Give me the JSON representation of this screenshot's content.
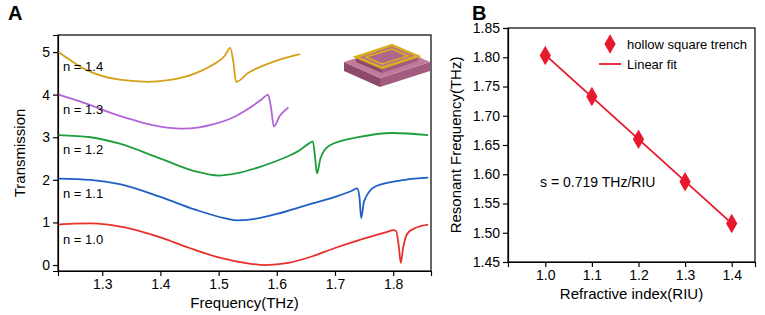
{
  "chart_data": [
    {
      "type": "line",
      "title": "A",
      "x_label": "Frequency(THz)",
      "y_label": "Transmission",
      "xlim": [
        1.224,
        1.865
      ],
      "ylim": [
        -0.14,
        5.4
      ],
      "xticks": [
        1.3,
        1.4,
        1.5,
        1.6,
        1.7,
        1.8
      ],
      "yticks": [
        0,
        1,
        2,
        3,
        4,
        5
      ],
      "series": [
        {
          "name": "n = 1.0",
          "color": "#e8312a",
          "x": [
            1.225,
            1.25,
            1.28,
            1.31,
            1.35,
            1.4,
            1.45,
            1.5,
            1.55,
            1.58,
            1.62,
            1.66,
            1.7,
            1.74,
            1.77,
            1.79,
            1.8,
            1.805,
            1.81,
            1.813,
            1.817,
            1.825,
            1.84,
            1.86
          ],
          "values": [
            0.95,
            0.97,
            0.98,
            0.95,
            0.85,
            0.65,
            0.4,
            0.18,
            0.04,
            0.0,
            0.05,
            0.2,
            0.4,
            0.58,
            0.7,
            0.78,
            0.82,
            0.8,
            0.4,
            0.05,
            0.4,
            0.75,
            0.88,
            0.95
          ]
        },
        {
          "name": "n = 1.1",
          "color": "#1f5fc4",
          "x": [
            1.225,
            1.28,
            1.33,
            1.4,
            1.46,
            1.51,
            1.53,
            1.56,
            1.6,
            1.65,
            1.7,
            1.73,
            1.738,
            1.742,
            1.745,
            1.75,
            1.77,
            1.82,
            1.86
          ],
          "values": [
            2.03,
            2.0,
            1.9,
            1.6,
            1.3,
            1.1,
            1.05,
            1.08,
            1.2,
            1.4,
            1.6,
            1.75,
            1.8,
            1.6,
            1.1,
            1.5,
            1.85,
            2.0,
            2.05
          ]
        },
        {
          "name": "n = 1.2",
          "color": "#1e9e3c",
          "x": [
            1.225,
            1.28,
            1.33,
            1.4,
            1.46,
            1.5,
            1.53,
            1.57,
            1.61,
            1.64,
            1.655,
            1.662,
            1.666,
            1.669,
            1.675,
            1.69,
            1.74,
            1.8,
            1.86
          ],
          "values": [
            3.05,
            3.0,
            2.85,
            2.5,
            2.2,
            2.1,
            2.15,
            2.3,
            2.5,
            2.7,
            2.85,
            2.9,
            2.5,
            2.15,
            2.5,
            2.8,
            3.0,
            3.1,
            3.05
          ]
        },
        {
          "name": "n = 1.3",
          "color": "#b264d6",
          "x": [
            1.225,
            1.27,
            1.33,
            1.4,
            1.44,
            1.49,
            1.53,
            1.56,
            1.575,
            1.585,
            1.59,
            1.595,
            1.605,
            1.62
          ],
          "values": [
            4.0,
            3.8,
            3.5,
            3.25,
            3.2,
            3.3,
            3.5,
            3.75,
            3.9,
            4.0,
            3.7,
            3.25,
            3.5,
            3.7
          ]
        },
        {
          "name": "n = 1.4",
          "color": "#d4a017",
          "x": [
            1.225,
            1.27,
            1.33,
            1.38,
            1.42,
            1.46,
            1.49,
            1.51,
            1.52,
            1.525,
            1.53,
            1.55,
            1.6,
            1.64
          ],
          "values": [
            5.0,
            4.6,
            4.35,
            4.3,
            4.35,
            4.5,
            4.7,
            4.9,
            5.1,
            4.8,
            4.3,
            4.5,
            4.8,
            4.95
          ]
        }
      ]
    },
    {
      "type": "scatter",
      "title": "B",
      "x_label": "Refractive index(RIU)",
      "y_label": "Resonant Frequency(THz)",
      "xlim": [
        0.92,
        1.45
      ],
      "ylim": [
        1.45,
        1.85
      ],
      "xticks": [
        {
          "value": 1.0,
          "label": "1.0"
        },
        1.1,
        1.2,
        1.3,
        1.4
      ],
      "yticks": [
        1.45,
        {
          "value": 1.5,
          "label": "1.50"
        },
        1.55,
        {
          "value": 1.6,
          "label": "1.60"
        },
        1.65,
        {
          "value": 1.7,
          "label": "1.70"
        },
        1.75,
        {
          "value": 1.8,
          "label": "1.80"
        },
        1.85
      ],
      "legend": "upper right",
      "annotations": [
        "s = 0.719 THz/RIU"
      ],
      "series": [
        {
          "name": "hollow square trench",
          "type": "scatter",
          "marker": "diamond",
          "color": "#e8192c",
          "x": [
            1.0,
            1.1,
            1.2,
            1.3,
            1.4
          ],
          "values": [
            1.803,
            1.733,
            1.66,
            1.587,
            1.516
          ]
        },
        {
          "name": "Linear fit",
          "type": "line",
          "color": "#e8192c",
          "x": [
            1.0,
            1.4
          ],
          "values": [
            1.804,
            1.516
          ]
        }
      ]
    }
  ]
}
